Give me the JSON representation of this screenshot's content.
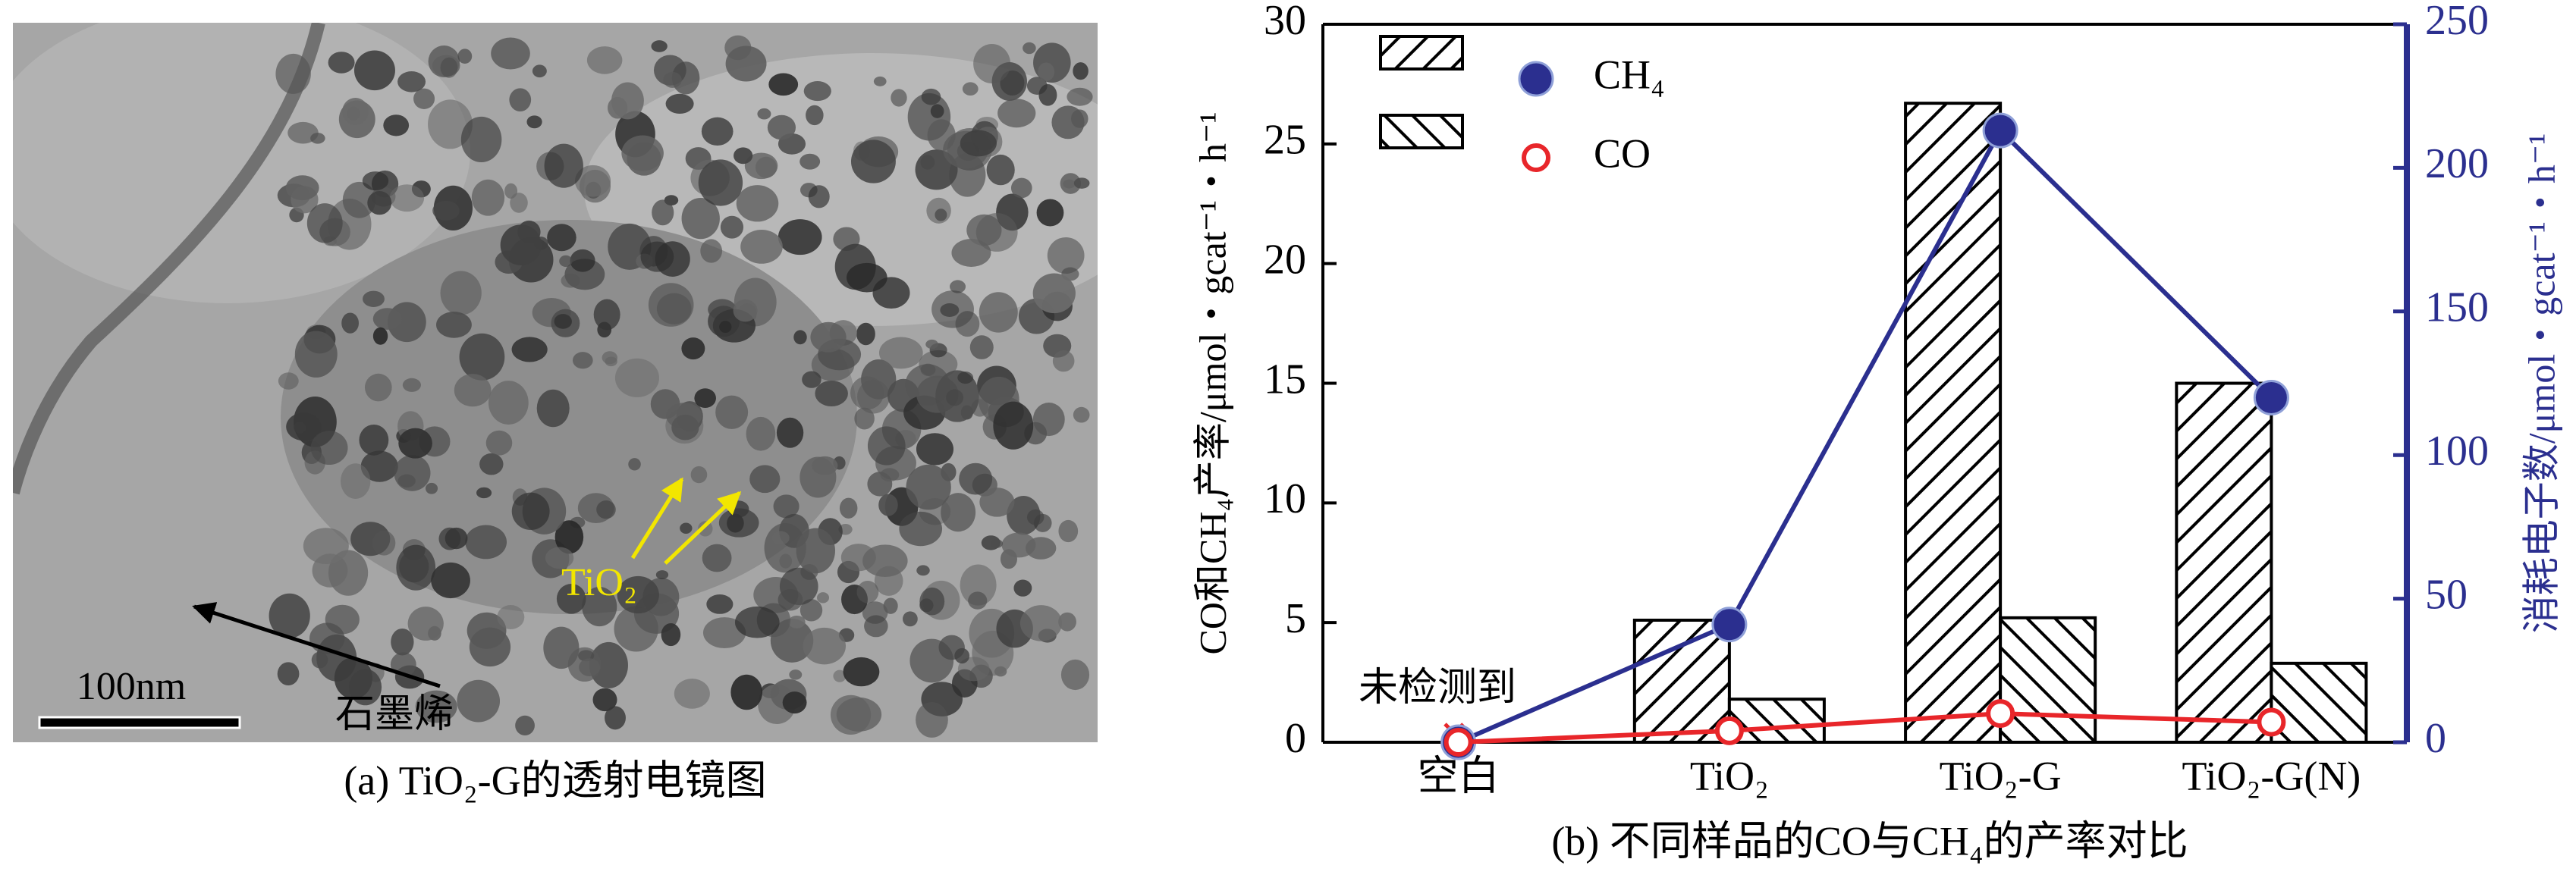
{
  "image_panel": {
    "caption": "(a) TiO₂-G的透射电镜图",
    "labels": {
      "tio2": "TiO₂",
      "graphene": "石墨烯",
      "scale_bar": "100nm"
    }
  },
  "chart_data": {
    "type": "bar",
    "caption": "(b) 不同样品的CO与CH₄的产率对比",
    "ylabel": "CO和CH₄产率/μmol・gcat⁻¹・h⁻¹",
    "y2label": "消耗电子数/μmol・gcat⁻¹・h⁻¹",
    "annotation": "未检测到",
    "categories": [
      "空白",
      "TiO₂",
      "TiO₂-G",
      "TiO₂-G(N)"
    ],
    "series": [
      {
        "hatch": "/",
        "values": [
          null,
          5.1,
          26.7,
          15.0
        ]
      },
      {
        "hatch": "\\",
        "values": [
          null,
          1.8,
          5.2,
          3.3
        ]
      },
      {
        "name": "CH₄",
        "type": "line",
        "marker": "filled",
        "color": "#2b2f8f",
        "axis": "y2",
        "values": [
          0,
          41,
          213,
          120
        ]
      },
      {
        "name": "CO",
        "type": "line",
        "marker": "open",
        "color": "#e8262a",
        "axis": "y2",
        "values": [
          0,
          4,
          10,
          7
        ]
      }
    ],
    "ylim": [
      0,
      30
    ],
    "yticks": [
      0,
      5,
      10,
      15,
      20,
      25,
      30
    ],
    "y2lim": [
      0,
      250
    ],
    "y2ticks": [
      0,
      50,
      100,
      150,
      200,
      250
    ],
    "y2color": "#2b2f8f",
    "legend": "top-left"
  }
}
